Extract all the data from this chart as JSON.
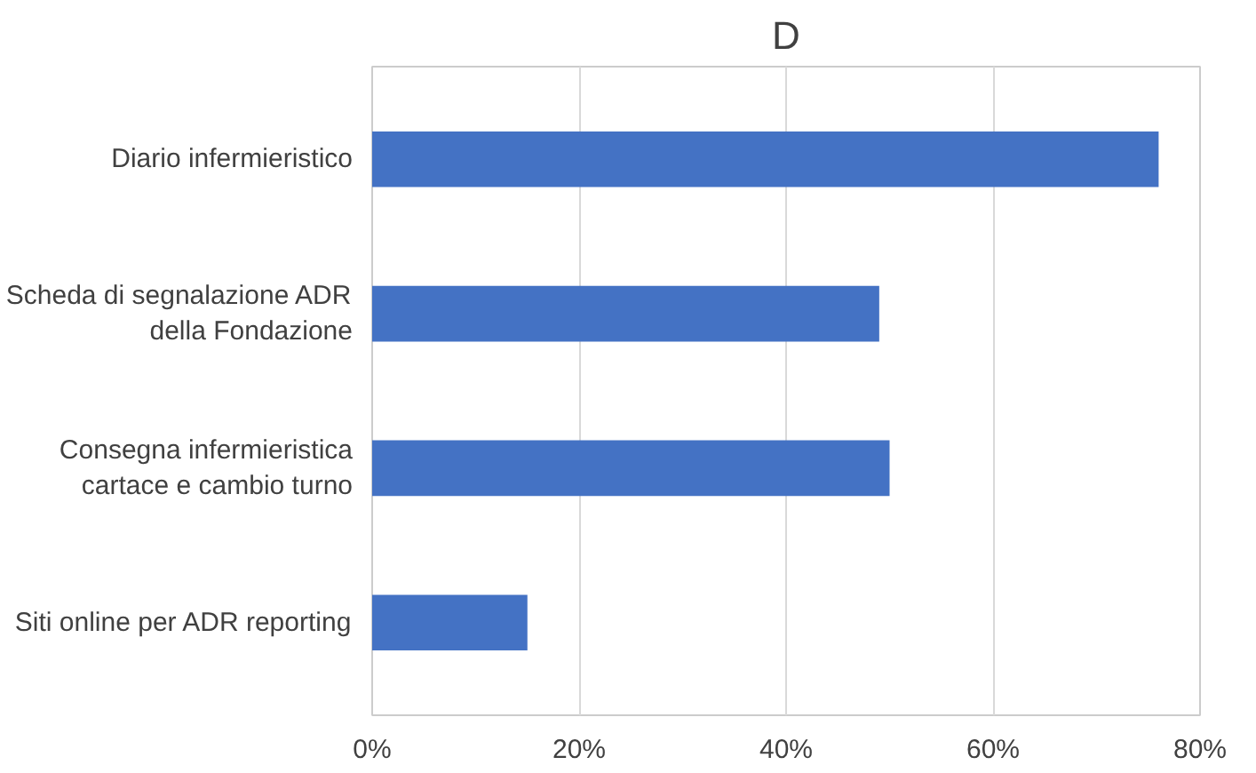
{
  "chart_data": {
    "type": "bar",
    "orientation": "horizontal",
    "title": "D",
    "categories": [
      "Diario infermieristico",
      "Scheda di segnalazione ADR\ndella Fondazione",
      "Consegna infermieristica\ncartace e cambio turno",
      "Siti online per ADR reporting"
    ],
    "values": [
      76,
      49,
      50,
      15
    ],
    "color": "#4472c4",
    "xlim": [
      0,
      80
    ],
    "xticks": [
      {
        "value": 0,
        "label": "0%"
      },
      {
        "value": 20,
        "label": "20%"
      },
      {
        "value": 40,
        "label": "40%"
      },
      {
        "value": 60,
        "label": "60%"
      },
      {
        "value": 80,
        "label": "80%"
      }
    ],
    "grid": "x"
  }
}
